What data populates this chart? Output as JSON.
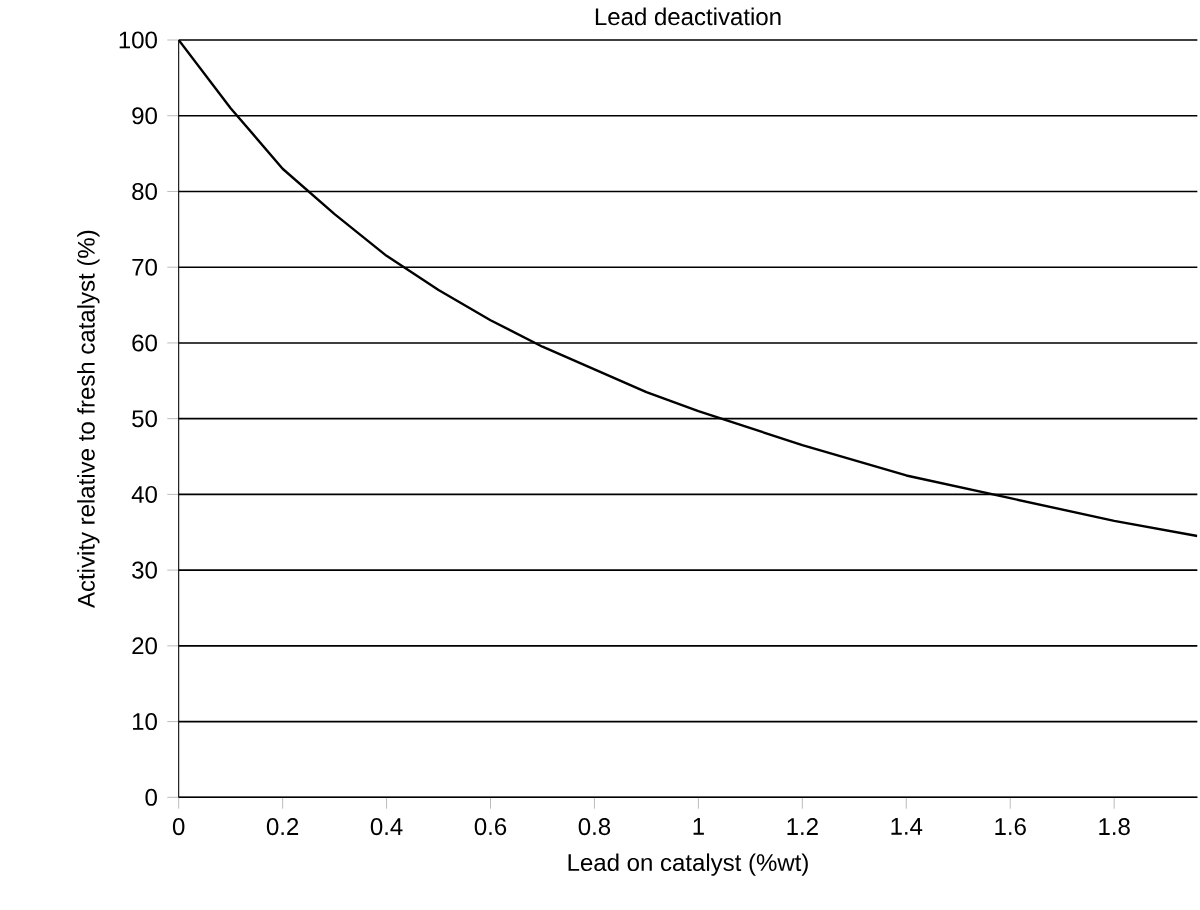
{
  "chart_data": {
    "type": "line",
    "title": "Lead deactivation",
    "xlabel": "Lead on catalyst (%wt)",
    "ylabel": "Activity relative to fresh catalyst (%)",
    "x": [
      0,
      0.1,
      0.2,
      0.3,
      0.4,
      0.5,
      0.6,
      0.7,
      0.8,
      0.9,
      1.0,
      1.2,
      1.4,
      1.6,
      1.8,
      1.96
    ],
    "series": [
      {
        "color": "#000000",
        "values": [
          100,
          91,
          83,
          77,
          71.5,
          67,
          63,
          59.5,
          56.5,
          53.5,
          51,
          46.5,
          42.5,
          39.5,
          36.5,
          34.5
        ]
      }
    ],
    "xlim": [
      0,
      1.96
    ],
    "ylim": [
      0,
      100
    ],
    "xticks": [
      0,
      0.2,
      0.4,
      0.6,
      0.8,
      1,
      1.2,
      1.4,
      1.6,
      1.8
    ],
    "yticks": [
      0,
      10,
      20,
      30,
      40,
      50,
      60,
      70,
      80,
      90,
      100
    ],
    "grid": "y",
    "marker": "none",
    "line_style": "solid"
  }
}
